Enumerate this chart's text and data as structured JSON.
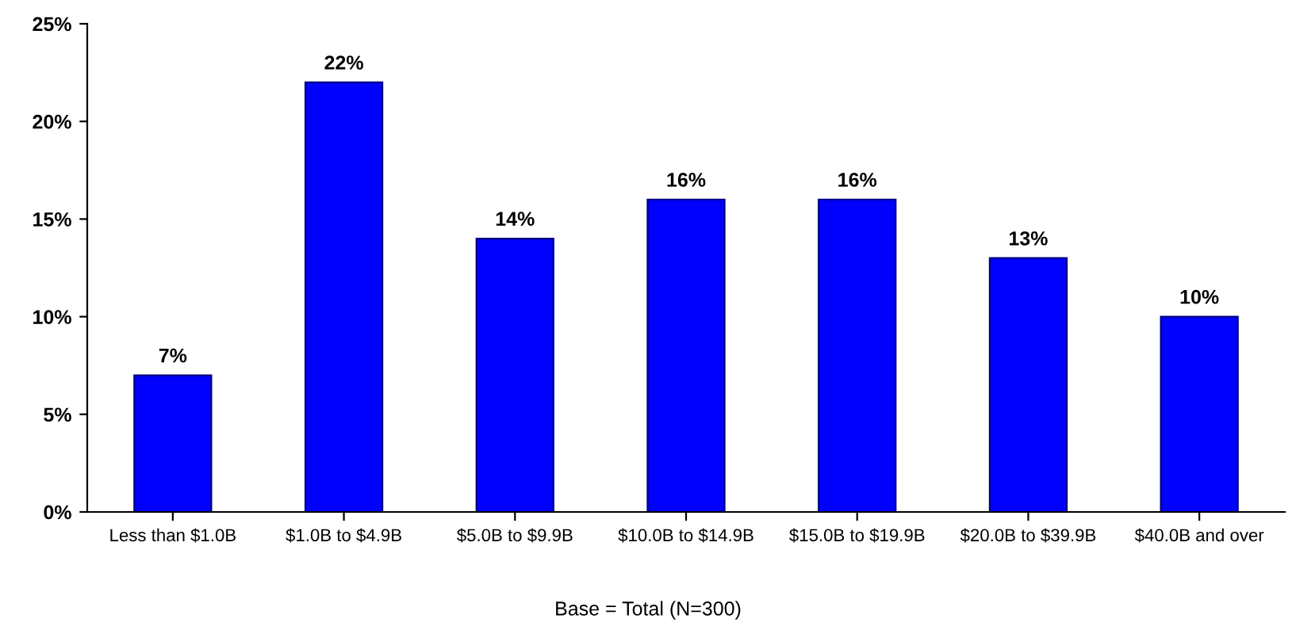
{
  "chart_data": {
    "type": "bar",
    "categories": [
      "Less than $1.0B",
      "$1.0B to $4.9B",
      "$5.0B to $9.9B",
      "$10.0B to $14.9B",
      "$15.0B to $19.9B",
      "$20.0B to $39.9B",
      "$40.0B and over"
    ],
    "values": [
      7,
      22,
      14,
      16,
      16,
      13,
      10
    ],
    "value_labels": [
      "7%",
      "22%",
      "14%",
      "16%",
      "16%",
      "13%",
      "10%"
    ],
    "color": "#0000ff",
    "ylim": [
      0,
      25
    ],
    "yticks": [
      {
        "value": 0,
        "label": "0%"
      },
      {
        "value": 5,
        "label": "5%"
      },
      {
        "value": 10,
        "label": "10%"
      },
      {
        "value": 15,
        "label": "15%"
      },
      {
        "value": 20,
        "label": "20%"
      },
      {
        "value": 25,
        "label": "25%"
      }
    ],
    "grid": false,
    "annotations": [
      "Base = Total (N=300)"
    ]
  }
}
